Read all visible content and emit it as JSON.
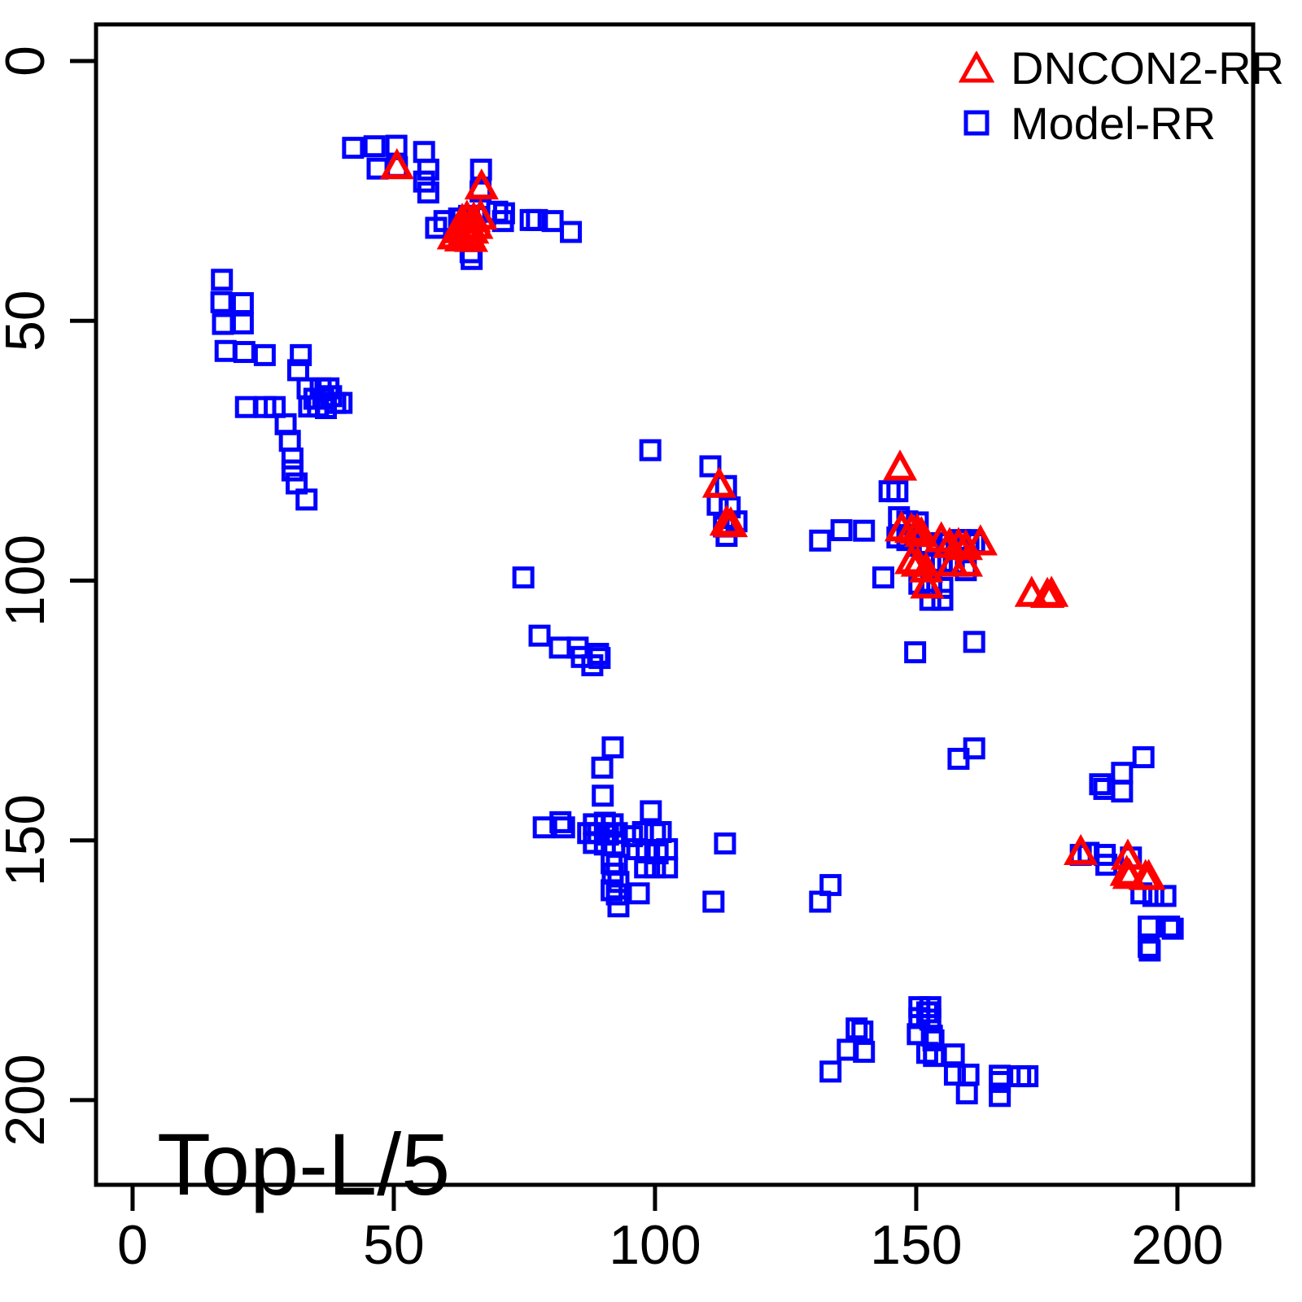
{
  "title": "Top-L/5",
  "legend": {
    "items": [
      {
        "label": "DNCON2-RR",
        "marker": "triangle",
        "color": "#ff0000"
      },
      {
        "label": "Model-RR",
        "marker": "square",
        "color": "#0000ff"
      }
    ],
    "position": "top-right"
  },
  "chart_data": {
    "type": "scatter",
    "title": "Top-L/5",
    "xlabel": "",
    "ylabel": "",
    "grid": false,
    "axes": {
      "x_ticks": [
        0,
        50,
        100,
        150,
        200
      ],
      "y_ticks": [
        0,
        50,
        100,
        150,
        200
      ],
      "x_range": [
        -7.0,
        214.5
      ],
      "y_range": [
        -7.05,
        216.3
      ],
      "y_inverted": true
    },
    "series": [
      {
        "name": "Model-RR",
        "marker": "square",
        "color": "#0000ff",
        "points": [
          [
            42.2,
            16.7
          ],
          [
            46.3,
            16.4
          ],
          [
            50.5,
            16.3
          ],
          [
            55.8,
            17.5
          ],
          [
            46.9,
            20.7
          ],
          [
            50.6,
            20.4
          ],
          [
            56.6,
            20.9
          ],
          [
            55.8,
            23.2
          ],
          [
            56.6,
            25.3
          ],
          [
            66.7,
            20.9
          ],
          [
            66.6,
            25.1
          ],
          [
            58.1,
            32.1
          ],
          [
            59.7,
            30.8
          ],
          [
            62.5,
            30.3
          ],
          [
            64.4,
            29.8
          ],
          [
            65.6,
            30.0
          ],
          [
            69.8,
            29.0
          ],
          [
            71.1,
            29.3
          ],
          [
            70.9,
            30.8
          ],
          [
            76.2,
            30.6
          ],
          [
            77.4,
            30.6
          ],
          [
            80.4,
            30.8
          ],
          [
            83.9,
            32.9
          ],
          [
            64.7,
            36.8
          ],
          [
            64.9,
            38.1
          ],
          [
            17.1,
            42.1
          ],
          [
            17.0,
            46.4
          ],
          [
            21.1,
            46.6
          ],
          [
            17.3,
            50.6
          ],
          [
            21.1,
            50.5
          ],
          [
            17.8,
            55.8
          ],
          [
            21.4,
            56.0
          ],
          [
            25.3,
            56.6
          ],
          [
            32.2,
            56.6
          ],
          [
            31.7,
            59.5
          ],
          [
            33.5,
            63.0
          ],
          [
            36.0,
            63.0
          ],
          [
            37.5,
            63.0
          ],
          [
            34.8,
            65.0
          ],
          [
            36.5,
            65.0
          ],
          [
            38.0,
            64.5
          ],
          [
            38.8,
            65.8
          ],
          [
            40.0,
            65.8
          ],
          [
            33.8,
            66.5
          ],
          [
            35.5,
            66.5
          ],
          [
            37.0,
            66.8
          ],
          [
            21.7,
            66.6
          ],
          [
            25.4,
            66.6
          ],
          [
            27.2,
            66.6
          ],
          [
            29.3,
            69.9
          ],
          [
            30.1,
            73.1
          ],
          [
            30.6,
            76.5
          ],
          [
            30.6,
            78.8
          ],
          [
            31.4,
            81.3
          ],
          [
            33.3,
            84.4
          ],
          [
            99.1,
            74.9
          ],
          [
            110.6,
            78.0
          ],
          [
            113.6,
            81.8
          ],
          [
            112.0,
            85.4
          ],
          [
            114.3,
            85.9
          ],
          [
            115.6,
            88.6
          ],
          [
            113.2,
            89.6
          ],
          [
            113.7,
            91.4
          ],
          [
            144.9,
            82.8
          ],
          [
            146.4,
            82.8
          ],
          [
            131.6,
            92.3
          ],
          [
            135.7,
            90.3
          ],
          [
            140.0,
            90.4
          ],
          [
            146.7,
            87.8
          ],
          [
            148.3,
            88.6
          ],
          [
            150.3,
            88.8
          ],
          [
            146.4,
            91.7
          ],
          [
            148.3,
            92.2
          ],
          [
            150.6,
            93.3
          ],
          [
            152.4,
            93.3
          ],
          [
            154.3,
            92.8
          ],
          [
            156.4,
            92.8
          ],
          [
            158.4,
            92.2
          ],
          [
            160.0,
            92.2
          ],
          [
            161.1,
            92.8
          ],
          [
            152.7,
            96.4
          ],
          [
            154.9,
            96.4
          ],
          [
            157.2,
            96.7
          ],
          [
            159.5,
            98.0
          ],
          [
            150.6,
            100.6
          ],
          [
            152.9,
            101.1
          ],
          [
            155.0,
            101.4
          ],
          [
            152.7,
            103.7
          ],
          [
            155.0,
            103.7
          ],
          [
            143.7,
            99.4
          ],
          [
            149.8,
            113.8
          ],
          [
            161.1,
            111.8
          ],
          [
            74.8,
            99.4
          ],
          [
            77.9,
            110.6
          ],
          [
            81.8,
            112.9
          ],
          [
            85.2,
            112.9
          ],
          [
            86.0,
            114.7
          ],
          [
            89.1,
            114.1
          ],
          [
            89.4,
            114.9
          ],
          [
            88.0,
            116.3
          ],
          [
            91.9,
            132.1
          ],
          [
            89.9,
            136.0
          ],
          [
            90.0,
            141.4
          ],
          [
            99.2,
            144.4
          ],
          [
            78.7,
            147.5
          ],
          [
            81.9,
            146.5
          ],
          [
            82.6,
            147.5
          ],
          [
            88.3,
            146.9
          ],
          [
            90.4,
            146.6
          ],
          [
            91.9,
            146.9
          ],
          [
            87.2,
            148.6
          ],
          [
            89.1,
            148.6
          ],
          [
            91.0,
            148.9
          ],
          [
            92.7,
            148.6
          ],
          [
            88.3,
            150.5
          ],
          [
            90.4,
            150.8
          ],
          [
            92.2,
            150.8
          ],
          [
            95.6,
            149.2
          ],
          [
            97.7,
            148.4
          ],
          [
            100.0,
            148.6
          ],
          [
            101.1,
            148.4
          ],
          [
            96.6,
            151.7
          ],
          [
            98.4,
            152.3
          ],
          [
            100.5,
            152.5
          ],
          [
            102.3,
            151.7
          ],
          [
            98.1,
            155.2
          ],
          [
            100.0,
            155.2
          ],
          [
            102.3,
            155.2
          ],
          [
            91.7,
            154.4
          ],
          [
            92.7,
            154.7
          ],
          [
            91.9,
            156.4
          ],
          [
            93.0,
            158.0
          ],
          [
            91.7,
            159.6
          ],
          [
            92.7,
            160.4
          ],
          [
            96.9,
            160.2
          ],
          [
            93.0,
            162.7
          ],
          [
            113.4,
            150.6
          ],
          [
            111.2,
            161.8
          ],
          [
            133.6,
            158.6
          ],
          [
            131.6,
            161.8
          ],
          [
            158.1,
            134.3
          ],
          [
            161.1,
            132.3
          ],
          [
            185.2,
            139.2
          ],
          [
            186.0,
            140.1
          ],
          [
            189.4,
            137.0
          ],
          [
            189.4,
            140.6
          ],
          [
            193.5,
            134.0
          ],
          [
            181.5,
            152.8
          ],
          [
            183.0,
            152.4
          ],
          [
            186.1,
            152.8
          ],
          [
            186.4,
            154.7
          ],
          [
            191.1,
            153.3
          ],
          [
            193.1,
            160.2
          ],
          [
            195.4,
            160.7
          ],
          [
            197.7,
            160.7
          ],
          [
            194.5,
            166.6
          ],
          [
            198.4,
            166.6
          ],
          [
            199.1,
            167.0
          ],
          [
            194.5,
            170.5
          ],
          [
            194.7,
            171.2
          ],
          [
            138.6,
            186.2
          ],
          [
            139.7,
            186.8
          ],
          [
            136.9,
            190.3
          ],
          [
            140.0,
            190.7
          ],
          [
            133.6,
            194.5
          ],
          [
            150.6,
            182.1
          ],
          [
            152.7,
            182.1
          ],
          [
            152.1,
            183.1
          ],
          [
            150.6,
            184.2
          ],
          [
            152.7,
            184.5
          ],
          [
            150.3,
            187.3
          ],
          [
            153.0,
            187.6
          ],
          [
            153.3,
            188.5
          ],
          [
            152.1,
            190.9
          ],
          [
            153.4,
            191.5
          ],
          [
            157.2,
            191.2
          ],
          [
            157.4,
            195.1
          ],
          [
            160.0,
            195.1
          ],
          [
            159.7,
            198.7
          ],
          [
            166.0,
            195.3
          ],
          [
            166.0,
            196.5
          ],
          [
            166.0,
            199.2
          ],
          [
            169.9,
            195.4
          ],
          [
            171.3,
            195.4
          ]
        ]
      },
      {
        "name": "DNCON2-RR",
        "marker": "triangle",
        "color": "#ff0000",
        "points": [
          [
            50.6,
            20.4
          ],
          [
            66.8,
            24.3
          ],
          [
            61.5,
            33.9
          ],
          [
            62.3,
            32.7
          ],
          [
            62.9,
            34.3
          ],
          [
            63.1,
            30.9
          ],
          [
            63.5,
            32.2
          ],
          [
            64.0,
            30.3
          ],
          [
            64.2,
            33.6
          ],
          [
            64.8,
            34.4
          ],
          [
            65.0,
            32.8
          ],
          [
            65.3,
            30.6
          ],
          [
            65.8,
            31.9
          ],
          [
            66.6,
            30.1
          ],
          [
            112.3,
            81.7
          ],
          [
            113.7,
            89.0
          ],
          [
            114.5,
            89.3
          ],
          [
            146.9,
            78.4
          ],
          [
            147.2,
            90.1
          ],
          [
            149.1,
            90.4
          ],
          [
            150.2,
            90.6
          ],
          [
            151.0,
            91.2
          ],
          [
            154.8,
            92.2
          ],
          [
            156.4,
            93.3
          ],
          [
            158.1,
            93.3
          ],
          [
            159.5,
            93.7
          ],
          [
            162.3,
            92.8
          ],
          [
            149.1,
            96.4
          ],
          [
            150.3,
            96.9
          ],
          [
            151.9,
            98.0
          ],
          [
            156.9,
            96.9
          ],
          [
            159.5,
            96.9
          ],
          [
            152.1,
            101.1
          ],
          [
            172.1,
            102.7
          ],
          [
            175.1,
            102.9
          ],
          [
            175.9,
            102.7
          ],
          [
            181.5,
            152.4
          ],
          [
            190.5,
            153.3
          ],
          [
            190.3,
            156.4
          ],
          [
            190.8,
            157.0
          ],
          [
            193.9,
            157.2
          ],
          [
            194.5,
            157.2
          ]
        ]
      }
    ]
  }
}
